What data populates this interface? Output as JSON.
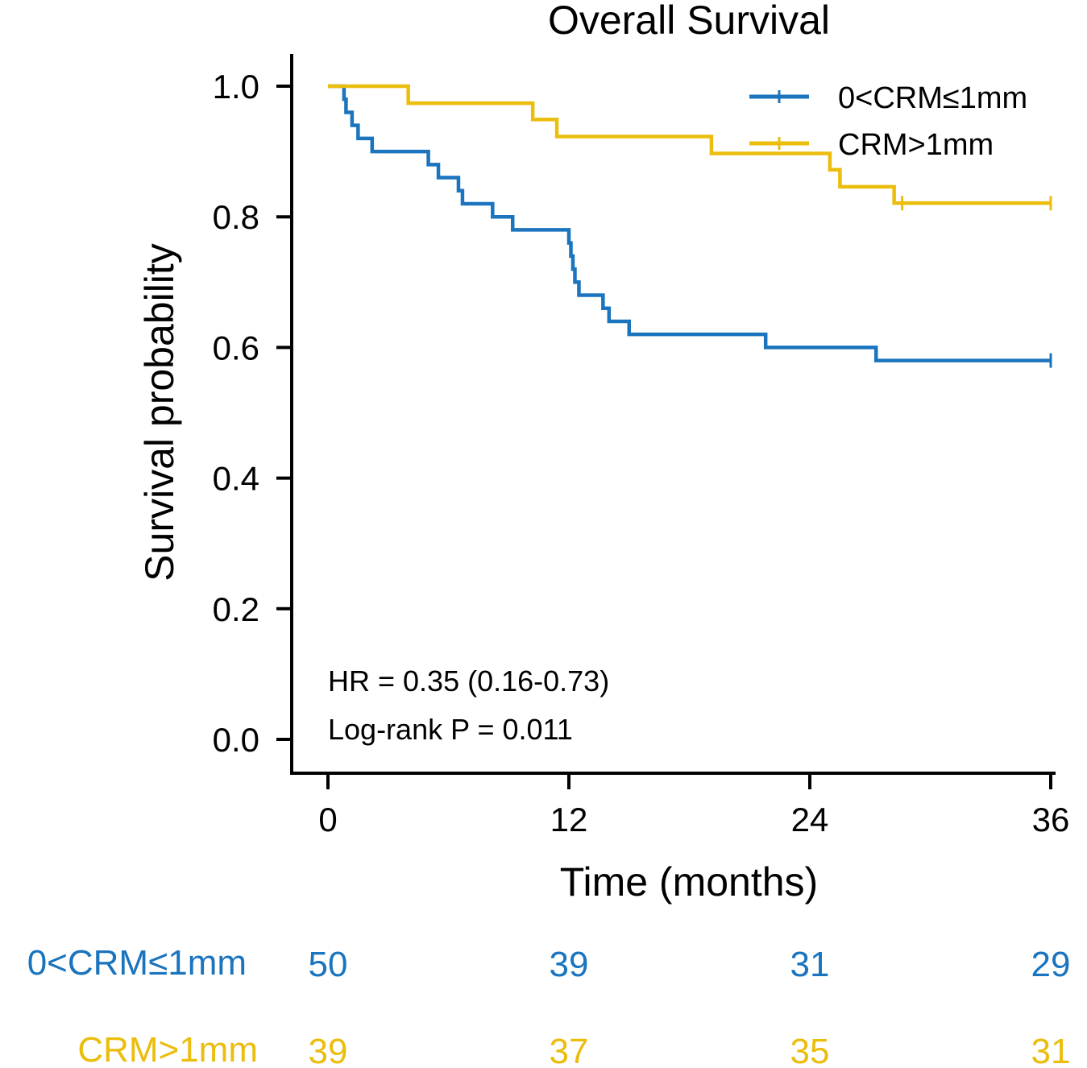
{
  "chart_data": {
    "type": "line",
    "subtype": "kaplan-meier",
    "title": "Overall Survival",
    "xlabel": "Time (months)",
    "ylabel": "Survival probability",
    "xlim": [
      0,
      36
    ],
    "ylim": [
      0,
      1
    ],
    "x_ticks": [
      0,
      12,
      24,
      36
    ],
    "x_tick_labels": [
      "0",
      "12",
      "24",
      "36"
    ],
    "y_ticks": [
      0.0,
      0.2,
      0.4,
      0.6,
      0.8,
      1.0
    ],
    "y_tick_labels": [
      "0.0",
      "0.2",
      "0.4",
      "0.6",
      "0.8",
      "1.0"
    ],
    "legend_position": "top-right",
    "annotations": {
      "hr": "HR = 0.35 (0.16-0.73)",
      "p": "Log-rank P = 0.011"
    },
    "series": [
      {
        "name": "0<CRM≤1mm",
        "color": "#1a74be",
        "steps": [
          [
            0,
            1.0
          ],
          [
            0.8,
            0.98
          ],
          [
            0.9,
            0.96
          ],
          [
            1.2,
            0.94
          ],
          [
            1.5,
            0.92
          ],
          [
            2.2,
            0.9
          ],
          [
            5.0,
            0.88
          ],
          [
            5.5,
            0.86
          ],
          [
            6.5,
            0.84
          ],
          [
            6.7,
            0.82
          ],
          [
            8.2,
            0.8
          ],
          [
            9.2,
            0.78
          ],
          [
            12.0,
            0.76
          ],
          [
            12.1,
            0.74
          ],
          [
            12.2,
            0.72
          ],
          [
            12.3,
            0.7
          ],
          [
            12.5,
            0.68
          ],
          [
            13.7,
            0.66
          ],
          [
            14.0,
            0.64
          ],
          [
            15.0,
            0.62
          ],
          [
            21.8,
            0.6
          ],
          [
            27.3,
            0.58
          ],
          [
            36,
            0.58
          ]
        ],
        "censored": [
          [
            36,
            0.58
          ]
        ]
      },
      {
        "name": "CRM>1mm",
        "color": "#ebbd0c",
        "steps": [
          [
            0,
            1.0
          ],
          [
            4.0,
            0.974
          ],
          [
            10.2,
            0.949
          ],
          [
            11.4,
            0.923
          ],
          [
            19.1,
            0.897
          ],
          [
            25.0,
            0.872
          ],
          [
            25.5,
            0.846
          ],
          [
            28.2,
            0.821
          ],
          [
            36,
            0.821
          ]
        ],
        "censored": [
          [
            28.6,
            0.821
          ],
          [
            36,
            0.821
          ]
        ]
      }
    ],
    "risk_table": {
      "times": [
        0,
        12,
        24,
        36
      ],
      "rows": [
        {
          "label": "0<CRM≤1mm",
          "color": "#1a74be",
          "values": [
            "50",
            "39",
            "31",
            "29"
          ]
        },
        {
          "label": "CRM>1mm",
          "color": "#ebbd0c",
          "values": [
            "39",
            "37",
            "35",
            "31"
          ]
        }
      ]
    }
  }
}
